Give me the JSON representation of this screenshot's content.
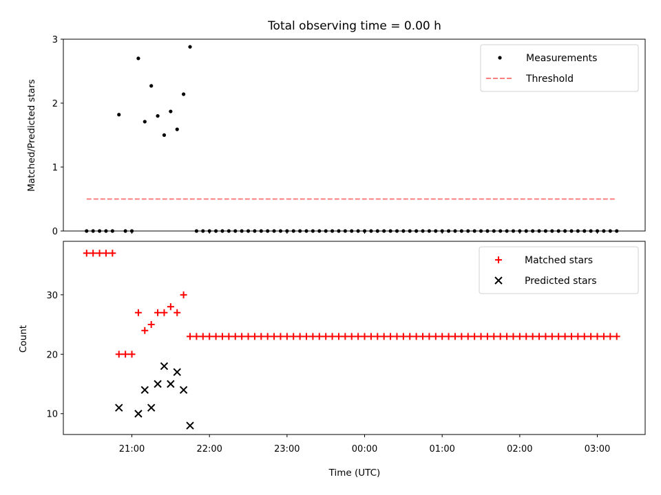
{
  "chart_data": [
    {
      "type": "scatter",
      "title": "Total observing time = 0.00 h",
      "xlabel": "",
      "ylabel": "Matched/Predicted stars",
      "xlim": [
        "20:07",
        "03:37"
      ],
      "ylim": [
        0,
        3
      ],
      "yticks": [
        "0",
        "1",
        "2",
        "3"
      ],
      "legend_position": "top-right",
      "grid": false,
      "series": [
        {
          "name": "Measurements",
          "marker": "dot",
          "color": "#000000",
          "x": [
            "20:25",
            "20:30",
            "20:35",
            "20:40",
            "20:45",
            "20:50",
            "20:55",
            "21:00",
            "21:05",
            "21:10",
            "21:15",
            "21:20",
            "21:25",
            "21:30",
            "21:35",
            "21:40",
            "21:45",
            "21:50",
            "21:55",
            "22:00",
            "22:05",
            "22:10",
            "22:15",
            "22:20",
            "22:25",
            "22:30",
            "22:35",
            "22:40",
            "22:45",
            "22:50",
            "22:55",
            "23:00",
            "23:05",
            "23:10",
            "23:15",
            "23:20",
            "23:25",
            "23:30",
            "23:35",
            "23:40",
            "23:45",
            "23:50",
            "23:55",
            "00:00",
            "00:05",
            "00:10",
            "00:15",
            "00:20",
            "00:25",
            "00:30",
            "00:35",
            "00:40",
            "00:45",
            "00:50",
            "00:55",
            "01:00",
            "01:05",
            "01:10",
            "01:15",
            "01:20",
            "01:25",
            "01:30",
            "01:35",
            "01:40",
            "01:45",
            "01:50",
            "01:55",
            "02:00",
            "02:05",
            "02:10",
            "02:15",
            "02:20",
            "02:25",
            "02:30",
            "02:35",
            "02:40",
            "02:45",
            "02:50",
            "02:55",
            "03:00",
            "03:05",
            "03:10",
            "03:15"
          ],
          "y": [
            0,
            0,
            0,
            0,
            0,
            1.82,
            0,
            0,
            2.7,
            1.71,
            2.27,
            1.8,
            1.5,
            1.87,
            1.59,
            2.14,
            2.88,
            0,
            0,
            0,
            0,
            0,
            0,
            0,
            0,
            0,
            0,
            0,
            0,
            0,
            0,
            0,
            0,
            0,
            0,
            0,
            0,
            0,
            0,
            0,
            0,
            0,
            0,
            0,
            0,
            0,
            0,
            0,
            0,
            0,
            0,
            0,
            0,
            0,
            0,
            0,
            0,
            0,
            0,
            0,
            0,
            0,
            0,
            0,
            0,
            0,
            0,
            0,
            0,
            0,
            0,
            0,
            0,
            0,
            0,
            0,
            0,
            0,
            0,
            0,
            0,
            0,
            0
          ]
        },
        {
          "name": "Threshold",
          "marker": "dashed-line",
          "color": "#ff7f7f",
          "x": [
            "20:25",
            "03:15"
          ],
          "y": [
            0.5,
            0.5
          ]
        }
      ]
    },
    {
      "type": "scatter",
      "title": "",
      "xlabel": "Time (UTC)",
      "ylabel": "Count",
      "xlim": [
        "20:07",
        "03:37"
      ],
      "ylim": [
        6.5,
        39
      ],
      "xticks": [
        "21:00",
        "22:00",
        "23:00",
        "00:00",
        "01:00",
        "02:00",
        "03:00"
      ],
      "yticks": [
        "10",
        "20",
        "30"
      ],
      "legend_position": "top-right",
      "grid": false,
      "series": [
        {
          "name": "Matched stars",
          "marker": "plus",
          "color": "#ff0000",
          "x": [
            "20:25",
            "20:30",
            "20:35",
            "20:40",
            "20:45",
            "20:50",
            "20:55",
            "21:00",
            "21:05",
            "21:10",
            "21:15",
            "21:20",
            "21:25",
            "21:30",
            "21:35",
            "21:40",
            "21:45",
            "21:50",
            "21:55",
            "22:00",
            "22:05",
            "22:10",
            "22:15",
            "22:20",
            "22:25",
            "22:30",
            "22:35",
            "22:40",
            "22:45",
            "22:50",
            "22:55",
            "23:00",
            "23:05",
            "23:10",
            "23:15",
            "23:20",
            "23:25",
            "23:30",
            "23:35",
            "23:40",
            "23:45",
            "23:50",
            "23:55",
            "00:00",
            "00:05",
            "00:10",
            "00:15",
            "00:20",
            "00:25",
            "00:30",
            "00:35",
            "00:40",
            "00:45",
            "00:50",
            "00:55",
            "01:00",
            "01:05",
            "01:10",
            "01:15",
            "01:20",
            "01:25",
            "01:30",
            "01:35",
            "01:40",
            "01:45",
            "01:50",
            "01:55",
            "02:00",
            "02:05",
            "02:10",
            "02:15",
            "02:20",
            "02:25",
            "02:30",
            "02:35",
            "02:40",
            "02:45",
            "02:50",
            "02:55",
            "03:00",
            "03:05",
            "03:10",
            "03:15"
          ],
          "y": [
            37,
            37,
            37,
            37,
            37,
            20,
            20,
            20,
            27,
            24,
            25,
            27,
            27,
            28,
            27,
            30,
            23,
            23,
            23,
            23,
            23,
            23,
            23,
            23,
            23,
            23,
            23,
            23,
            23,
            23,
            23,
            23,
            23,
            23,
            23,
            23,
            23,
            23,
            23,
            23,
            23,
            23,
            23,
            23,
            23,
            23,
            23,
            23,
            23,
            23,
            23,
            23,
            23,
            23,
            23,
            23,
            23,
            23,
            23,
            23,
            23,
            23,
            23,
            23,
            23,
            23,
            23,
            23,
            23,
            23,
            23,
            23,
            23,
            23,
            23,
            23,
            23,
            23,
            23,
            23,
            23,
            23,
            23
          ]
        },
        {
          "name": "Predicted stars",
          "marker": "x",
          "color": "#000000",
          "x": [
            "20:50",
            "21:05",
            "21:10",
            "21:15",
            "21:20",
            "21:25",
            "21:30",
            "21:35",
            "21:40",
            "21:45"
          ],
          "y": [
            11,
            10,
            14,
            11,
            15,
            18,
            15,
            17,
            14,
            8
          ]
        }
      ]
    }
  ]
}
